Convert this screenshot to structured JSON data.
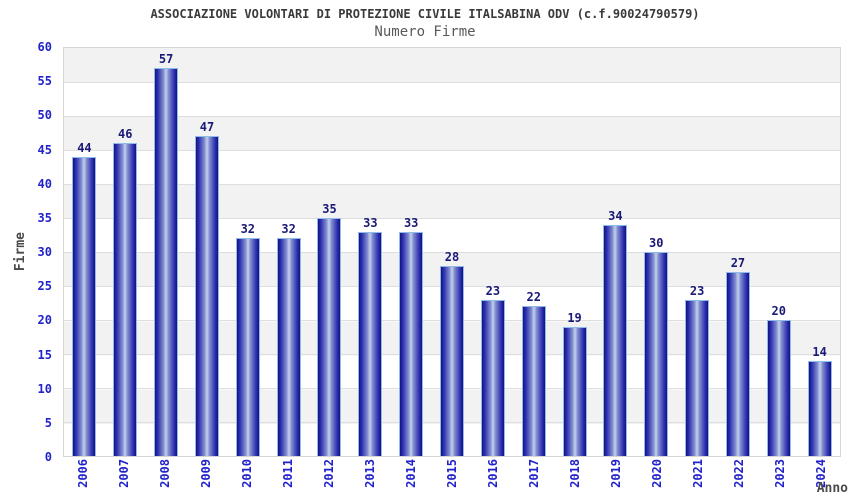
{
  "chart_data": {
    "type": "bar",
    "title": "ASSOCIAZIONE VOLONTARI DI PROTEZIONE CIVILE ITALSABINA ODV (c.f.90024790579)",
    "subtitle": "Numero Firme",
    "xlabel": "Anno",
    "ylabel": "Firme",
    "categories": [
      "2006",
      "2007",
      "2008",
      "2009",
      "2010",
      "2011",
      "2012",
      "2013",
      "2014",
      "2015",
      "2016",
      "2017",
      "2018",
      "2019",
      "2020",
      "2021",
      "2022",
      "2023",
      "2024"
    ],
    "values": [
      44,
      46,
      57,
      47,
      32,
      32,
      35,
      33,
      33,
      28,
      23,
      22,
      19,
      34,
      30,
      23,
      27,
      20,
      14
    ],
    "ylim": [
      0,
      60
    ],
    "ytick_step": 5,
    "grid": "horizontal",
    "legend": "none",
    "colors": {
      "bar_dark": "#14147a",
      "bar_light": "#c6cfeb",
      "bar_outline": "#8fbbea",
      "value_label": "#191978",
      "axis_tick_label": "#2222cc",
      "axis_title": "#4a4a4a",
      "title": "#3a3a3a",
      "subtitle": "#5a5a5a",
      "band_gray": "#f2f2f2",
      "gridline": "#dedede",
      "plot_border": "#d6d6d6",
      "background": "#ffffff"
    }
  }
}
